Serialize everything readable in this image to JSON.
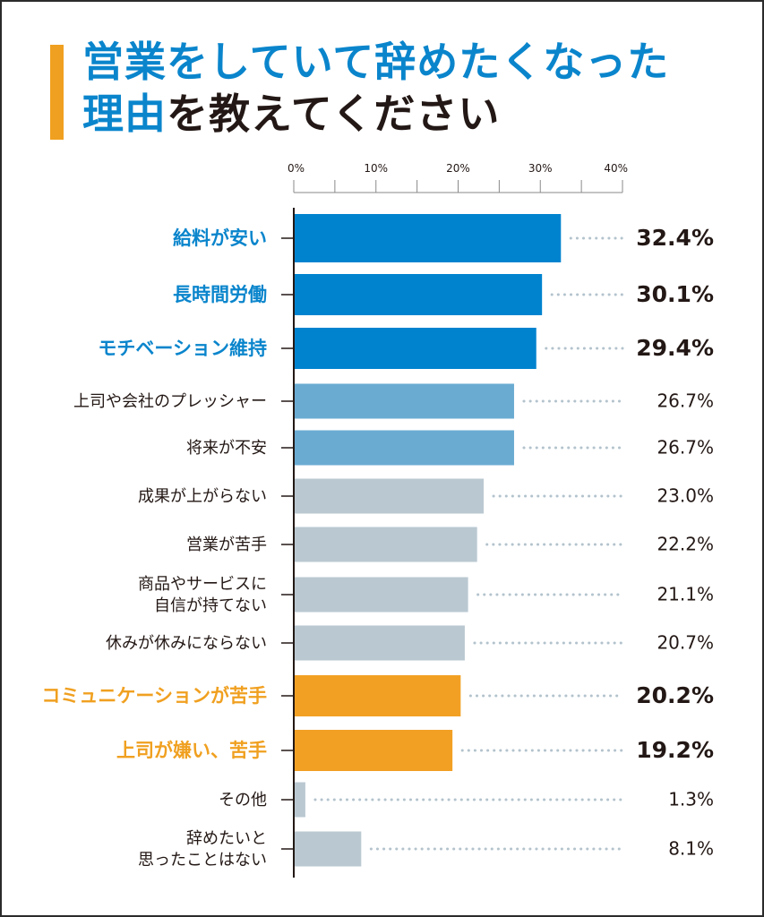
{
  "header": {
    "title_line1": "営業をしていて辞めたくなった",
    "title_line2_blue": "理由",
    "title_line2_dark": "を教えてください",
    "accent_color": "#f0a020"
  },
  "chart_data": {
    "type": "bar",
    "orientation": "horizontal",
    "title": "営業をしていて辞めたくなった理由を教えてください",
    "xlabel": "",
    "ylabel": "",
    "xlim": [
      0,
      40
    ],
    "x_ticks": [
      "0%",
      "10%",
      "20%",
      "30%",
      "40%"
    ],
    "x_tick_values": [
      0,
      10,
      20,
      30,
      40
    ],
    "x_minor_tick_step": 5,
    "grid": false,
    "categories": [
      [
        "給料が安い"
      ],
      [
        "長時間労働"
      ],
      [
        "モチベーション維持"
      ],
      [
        "上司や会社のプレッシャー"
      ],
      [
        "将来が不安"
      ],
      [
        "成果が上がらない"
      ],
      [
        "営業が苦手"
      ],
      [
        "商品やサービスに",
        "自信が持てない"
      ],
      [
        "休みが休みにならない"
      ],
      [
        "コミュニケーションが苦手"
      ],
      [
        "上司が嫌い、苦手"
      ],
      [
        "その他"
      ],
      [
        "辞めたいと",
        "思ったことはない"
      ]
    ],
    "values": [
      32.4,
      30.1,
      29.4,
      26.7,
      26.7,
      23.0,
      22.2,
      21.1,
      20.7,
      20.2,
      19.2,
      1.3,
      8.1
    ],
    "value_labels": [
      "32.4%",
      "30.1%",
      "29.4%",
      "26.7%",
      "26.7%",
      "23.0%",
      "22.2%",
      "21.1%",
      "20.7%",
      "20.2%",
      "19.2%",
      "1.3%",
      "8.1%"
    ],
    "groups": [
      "top",
      "top",
      "top",
      "mid",
      "mid",
      "other",
      "other",
      "other",
      "other",
      "highlight",
      "highlight",
      "other",
      "other"
    ],
    "colors": {
      "top": "#0083cf",
      "mid": "#6aabd2",
      "other": "#bac8d1",
      "highlight": "#f2a024"
    },
    "label_colors": {
      "top": "#0a85cc",
      "mid": "#231815",
      "other": "#231815",
      "highlight": "#f0a020"
    },
    "emphasis": [
      "bold",
      "bold",
      "bold",
      "normal",
      "normal",
      "normal",
      "normal",
      "normal",
      "normal",
      "bold",
      "bold",
      "normal",
      "normal"
    ],
    "unit": "%"
  }
}
